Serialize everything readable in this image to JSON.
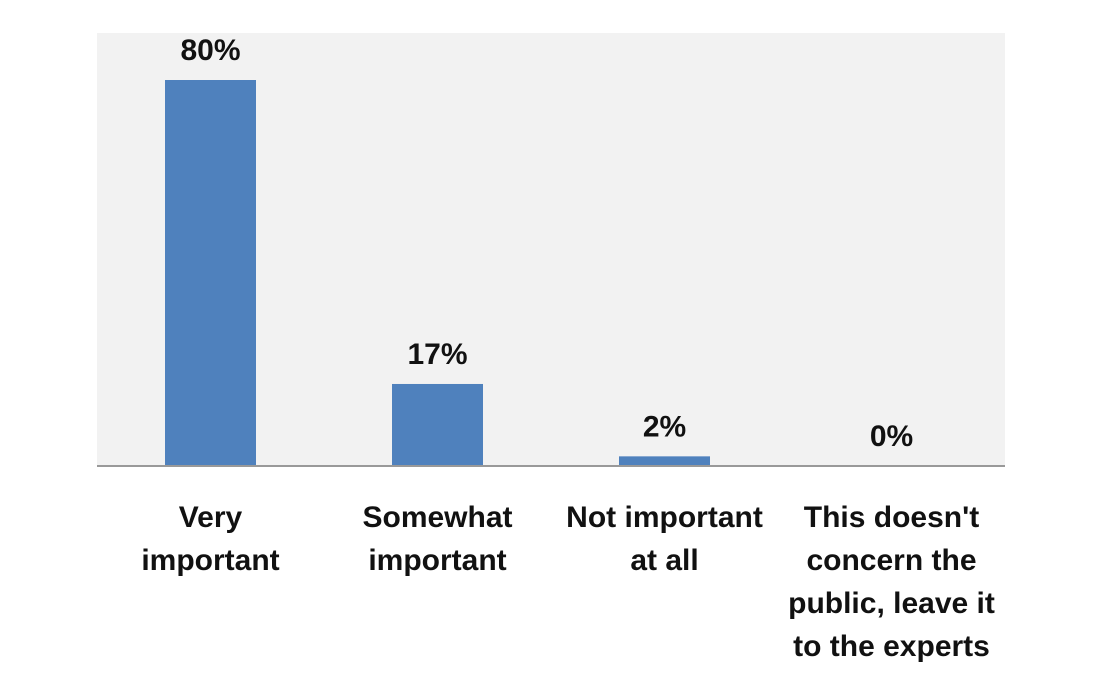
{
  "chart_data": {
    "type": "bar",
    "title": "",
    "xlabel": "",
    "ylabel": "",
    "categories": [
      [
        "Very",
        "important"
      ],
      [
        "Somewhat",
        "important"
      ],
      [
        "Not important",
        "at all"
      ],
      [
        "This doesn't",
        "concern the",
        "public, leave it",
        "to the experts"
      ]
    ],
    "values": [
      80,
      17,
      2,
      0
    ],
    "data_labels": [
      "80%",
      "17%",
      "2%",
      "0%"
    ],
    "ylim": [
      0,
      80
    ],
    "grid": false,
    "legend": "none",
    "colors": {
      "bar": "#4f81bd",
      "plot_background": "#f2f2f2",
      "axis": "#999999",
      "text": "#111111"
    }
  }
}
